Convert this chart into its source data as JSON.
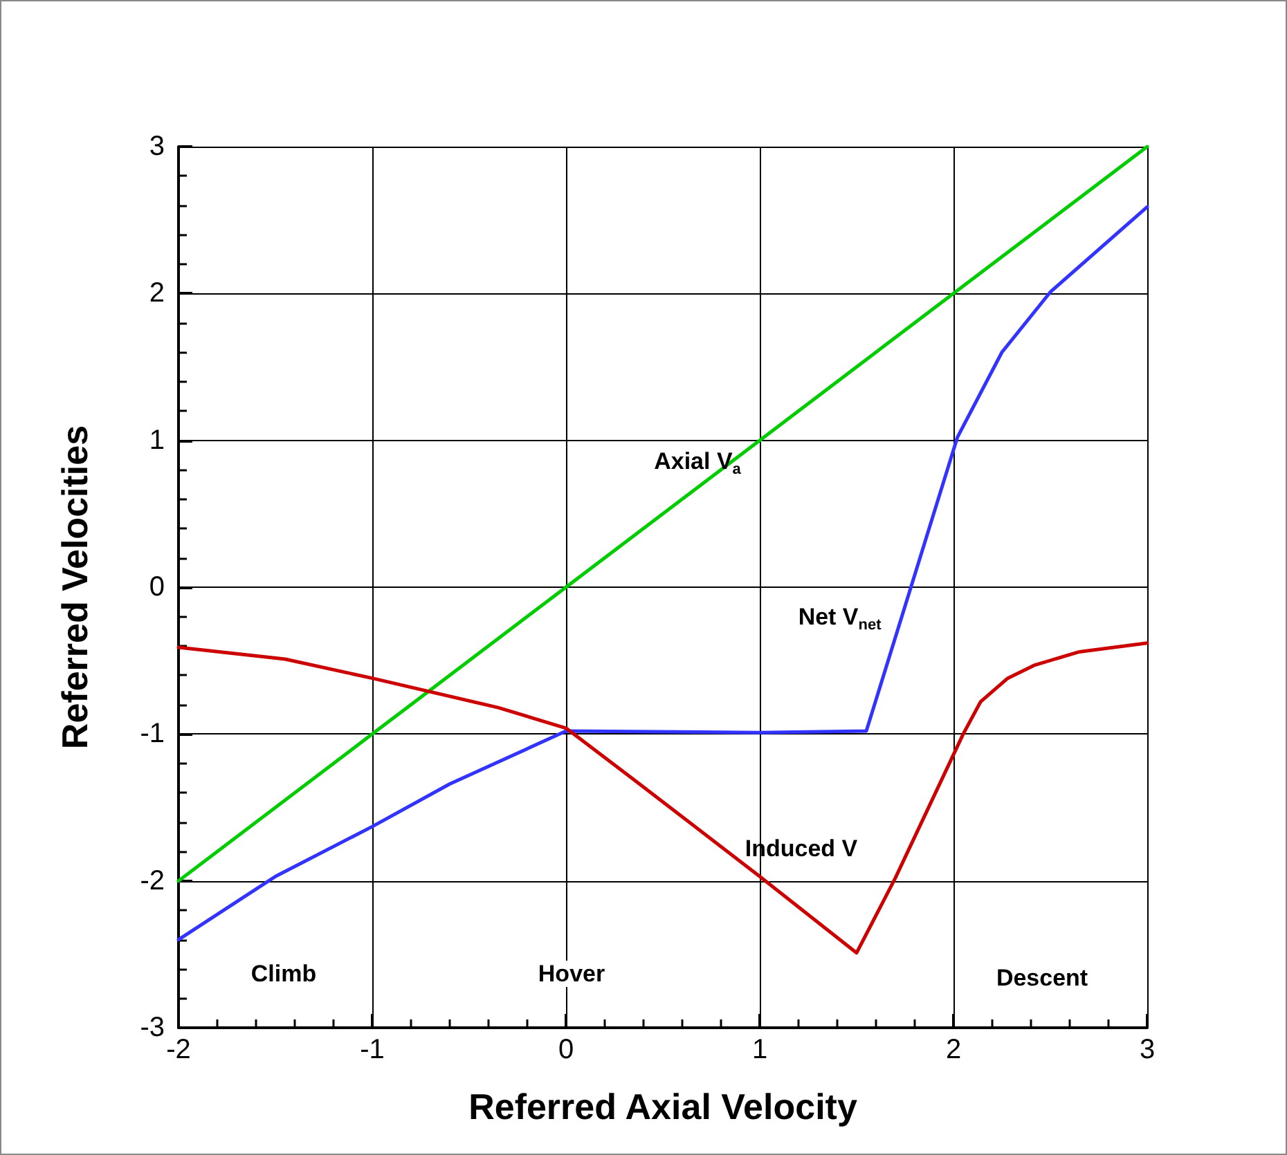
{
  "chart_data": {
    "type": "line",
    "xlabel": "Referred Axial Velocity",
    "ylabel": "Referred Velocities",
    "xlim": [
      -2,
      3
    ],
    "xticks": [
      -2,
      -1,
      0,
      1,
      2,
      3
    ],
    "ylim": [
      -3,
      3
    ],
    "yticks": [
      -3,
      -2,
      -1,
      0,
      1,
      2,
      3
    ],
    "grid": true,
    "legend": false,
    "marker": "none",
    "line_style": "solid",
    "series": [
      {
        "name": "Axial V$_{a}$",
        "color": "#00cc00",
        "x": [
          -2,
          -1,
          0,
          1,
          2,
          3
        ],
        "values": [
          -2,
          -1,
          0,
          1,
          2,
          3
        ]
      },
      {
        "name": "Net V$_{net}$",
        "color": "#3333ff",
        "x": [
          -2,
          -1.5,
          -1,
          -0.6,
          0,
          1,
          1.55,
          2.02,
          2.25,
          2.5,
          3
        ],
        "values": [
          -2.4,
          -1.97,
          -1.63,
          -1.34,
          -0.98,
          -0.99,
          -0.98,
          1.02,
          1.6,
          2.01,
          2.59
        ]
      },
      {
        "name": "Induced V",
        "color": "#cc0000",
        "x": [
          -2,
          -1.45,
          -1,
          -0.35,
          0,
          0.35,
          1,
          1.5,
          1.7,
          2.05,
          2.14,
          2.28,
          2.42,
          2.65,
          3
        ],
        "values": [
          -0.41,
          -0.49,
          -0.62,
          -0.82,
          -0.96,
          -1.31,
          -1.97,
          -2.49,
          -1.98,
          -1.0,
          -0.78,
          -0.62,
          -0.53,
          -0.44,
          -0.38
        ]
      }
    ],
    "annotations": [
      "Climb",
      "Hover",
      "Descent"
    ]
  }
}
